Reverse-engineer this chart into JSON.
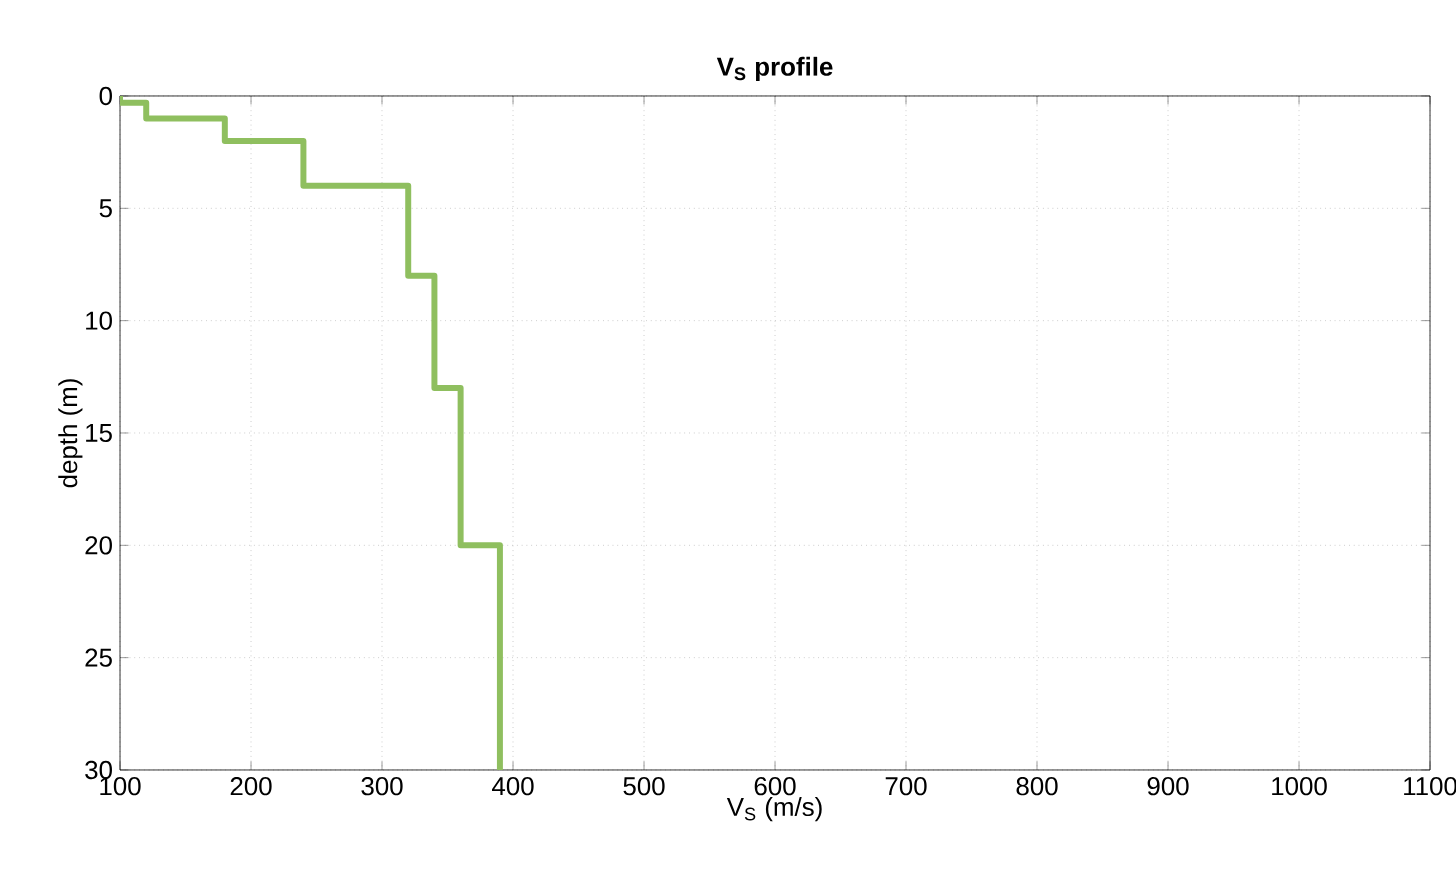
{
  "chart_data": {
    "type": "line",
    "title": "V$_{S}$ profile",
    "xlabel": "V$_{S}$ (m/s)",
    "ylabel": "depth (m)",
    "x": [
      100,
      100,
      120,
      120,
      180,
      180,
      240,
      240,
      320,
      320,
      340,
      340,
      360,
      360,
      390,
      390
    ],
    "values": [
      0,
      0.3,
      0.3,
      1,
      1,
      2,
      2,
      4,
      4,
      8,
      8,
      13,
      13,
      20,
      20,
      30
    ],
    "color": "#8fbf5f",
    "xlim": [
      100,
      1100
    ],
    "ylim": [
      30,
      0
    ],
    "xticks": [
      100,
      200,
      300,
      400,
      500,
      600,
      700,
      800,
      900,
      1000,
      1100
    ],
    "yticks": [
      0,
      5,
      10,
      15,
      20,
      25,
      30
    ],
    "grid": true,
    "marker": "none",
    "line_style": "solid"
  }
}
